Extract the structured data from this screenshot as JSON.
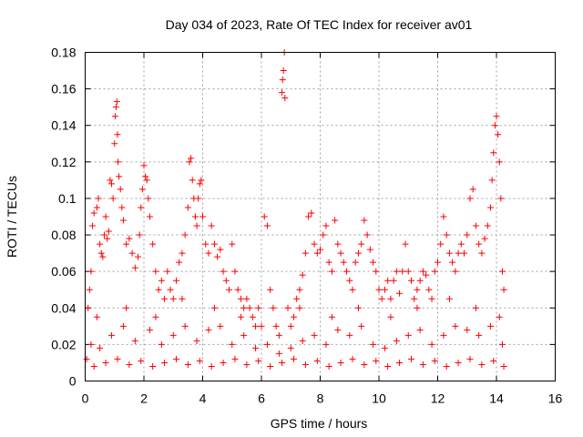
{
  "chart_data": {
    "type": "scatter",
    "title": "Day 034 of 2023, Rate Of TEC Index for receiver av01",
    "xlabel": "GPS time / hours",
    "ylabel": "ROTI / TECUs",
    "xlim": [
      0,
      16
    ],
    "ylim": [
      0,
      0.18
    ],
    "x_ticks": [
      "0",
      "2",
      "4",
      "6",
      "8",
      "10",
      "12",
      "14",
      "16"
    ],
    "y_ticks": [
      "0",
      "0.02",
      "0.04",
      "0.06",
      "0.08",
      "0.1",
      "0.12",
      "0.14",
      "0.16",
      "0.18"
    ],
    "grid": true,
    "marker": "+",
    "color": "#ff0000",
    "series": [
      {
        "name": "ROTI",
        "points": [
          [
            0.05,
            0.012
          ],
          [
            0.1,
            0.04
          ],
          [
            0.15,
            0.05
          ],
          [
            0.2,
            0.06
          ],
          [
            0.25,
            0.085
          ],
          [
            0.3,
            0.092
          ],
          [
            0.4,
            0.095
          ],
          [
            0.45,
            0.1
          ],
          [
            0.5,
            0.075
          ],
          [
            0.55,
            0.07
          ],
          [
            0.6,
            0.068
          ],
          [
            0.65,
            0.08
          ],
          [
            0.7,
            0.09
          ],
          [
            0.75,
            0.078
          ],
          [
            0.8,
            0.082
          ],
          [
            0.85,
            0.11
          ],
          [
            0.9,
            0.108
          ],
          [
            0.95,
            0.1
          ],
          [
            1.0,
            0.13
          ],
          [
            1.02,
            0.145
          ],
          [
            1.05,
            0.15
          ],
          [
            1.08,
            0.153
          ],
          [
            1.1,
            0.135
          ],
          [
            1.12,
            0.12
          ],
          [
            1.15,
            0.112
          ],
          [
            1.2,
            0.105
          ],
          [
            1.25,
            0.095
          ],
          [
            1.3,
            0.088
          ],
          [
            1.4,
            0.075
          ],
          [
            1.5,
            0.078
          ],
          [
            1.6,
            0.07
          ],
          [
            1.7,
            0.062
          ],
          [
            1.8,
            0.068
          ],
          [
            1.85,
            0.08
          ],
          [
            1.9,
            0.095
          ],
          [
            1.95,
            0.105
          ],
          [
            2.0,
            0.118
          ],
          [
            2.05,
            0.112
          ],
          [
            2.1,
            0.11
          ],
          [
            2.15,
            0.1
          ],
          [
            2.2,
            0.09
          ],
          [
            2.3,
            0.075
          ],
          [
            2.4,
            0.06
          ],
          [
            2.5,
            0.05
          ],
          [
            2.6,
            0.055
          ],
          [
            2.7,
            0.045
          ],
          [
            2.8,
            0.06
          ],
          [
            2.9,
            0.05
          ],
          [
            3.0,
            0.045
          ],
          [
            3.1,
            0.055
          ],
          [
            3.2,
            0.065
          ],
          [
            3.3,
            0.07
          ],
          [
            3.4,
            0.08
          ],
          [
            3.5,
            0.095
          ],
          [
            3.55,
            0.12
          ],
          [
            3.6,
            0.122
          ],
          [
            3.65,
            0.11
          ],
          [
            3.7,
            0.1
          ],
          [
            3.75,
            0.09
          ],
          [
            3.8,
            0.085
          ],
          [
            3.85,
            0.1
          ],
          [
            3.9,
            0.108
          ],
          [
            3.95,
            0.11
          ],
          [
            4.0,
            0.09
          ],
          [
            4.1,
            0.075
          ],
          [
            4.2,
            0.07
          ],
          [
            4.3,
            0.085
          ],
          [
            4.4,
            0.075
          ],
          [
            4.5,
            0.068
          ],
          [
            4.6,
            0.072
          ],
          [
            4.7,
            0.06
          ],
          [
            4.8,
            0.055
          ],
          [
            4.9,
            0.05
          ],
          [
            5.0,
            0.075
          ],
          [
            5.1,
            0.06
          ],
          [
            5.2,
            0.05
          ],
          [
            5.3,
            0.045
          ],
          [
            5.4,
            0.04
          ],
          [
            5.5,
            0.045
          ],
          [
            5.6,
            0.04
          ],
          [
            5.7,
            0.035
          ],
          [
            5.8,
            0.03
          ],
          [
            5.9,
            0.04
          ],
          [
            6.0,
            0.03
          ],
          [
            6.1,
            0.09
          ],
          [
            6.2,
            0.085
          ],
          [
            6.3,
            0.05
          ],
          [
            6.4,
            0.04
          ],
          [
            6.5,
            0.03
          ],
          [
            6.6,
            0.025
          ],
          [
            6.7,
            0.158
          ],
          [
            6.72,
            0.165
          ],
          [
            6.75,
            0.17
          ],
          [
            6.78,
            0.18
          ],
          [
            6.8,
            0.155
          ],
          [
            6.9,
            0.04
          ],
          [
            7.0,
            0.03
          ],
          [
            7.1,
            0.035
          ],
          [
            7.2,
            0.045
          ],
          [
            7.3,
            0.05
          ],
          [
            7.4,
            0.058
          ],
          [
            7.5,
            0.07
          ],
          [
            7.6,
            0.09
          ],
          [
            7.7,
            0.092
          ],
          [
            7.8,
            0.075
          ],
          [
            7.9,
            0.07
          ],
          [
            8.0,
            0.072
          ],
          [
            8.1,
            0.08
          ],
          [
            8.2,
            0.085
          ],
          [
            8.3,
            0.065
          ],
          [
            8.4,
            0.06
          ],
          [
            8.5,
            0.088
          ],
          [
            8.6,
            0.075
          ],
          [
            8.7,
            0.07
          ],
          [
            8.8,
            0.065
          ],
          [
            8.9,
            0.06
          ],
          [
            9.0,
            0.055
          ],
          [
            9.1,
            0.05
          ],
          [
            9.2,
            0.065
          ],
          [
            9.3,
            0.07
          ],
          [
            9.4,
            0.075
          ],
          [
            9.5,
            0.088
          ],
          [
            9.6,
            0.08
          ],
          [
            9.7,
            0.072
          ],
          [
            9.8,
            0.065
          ],
          [
            9.9,
            0.06
          ],
          [
            10.0,
            0.05
          ],
          [
            10.1,
            0.045
          ],
          [
            10.2,
            0.05
          ],
          [
            10.3,
            0.055
          ],
          [
            10.4,
            0.045
          ],
          [
            10.5,
            0.055
          ],
          [
            10.6,
            0.06
          ],
          [
            10.7,
            0.048
          ],
          [
            10.8,
            0.06
          ],
          [
            10.9,
            0.075
          ],
          [
            11.0,
            0.06
          ],
          [
            11.1,
            0.055
          ],
          [
            11.2,
            0.045
          ],
          [
            11.3,
            0.05
          ],
          [
            11.4,
            0.055
          ],
          [
            11.5,
            0.06
          ],
          [
            11.6,
            0.058
          ],
          [
            11.7,
            0.05
          ],
          [
            11.8,
            0.045
          ],
          [
            11.9,
            0.06
          ],
          [
            12.0,
            0.065
          ],
          [
            12.1,
            0.075
          ],
          [
            12.2,
            0.09
          ],
          [
            12.3,
            0.08
          ],
          [
            12.4,
            0.07
          ],
          [
            12.5,
            0.065
          ],
          [
            12.6,
            0.06
          ],
          [
            12.7,
            0.07
          ],
          [
            12.8,
            0.075
          ],
          [
            12.9,
            0.07
          ],
          [
            13.0,
            0.08
          ],
          [
            13.1,
            0.1
          ],
          [
            13.2,
            0.105
          ],
          [
            13.3,
            0.085
          ],
          [
            13.4,
            0.075
          ],
          [
            13.5,
            0.07
          ],
          [
            13.6,
            0.078
          ],
          [
            13.7,
            0.085
          ],
          [
            13.8,
            0.095
          ],
          [
            13.85,
            0.11
          ],
          [
            13.9,
            0.125
          ],
          [
            13.95,
            0.14
          ],
          [
            14.0,
            0.145
          ],
          [
            14.05,
            0.135
          ],
          [
            14.1,
            0.12
          ],
          [
            14.15,
            0.1
          ],
          [
            14.2,
            0.06
          ],
          [
            14.25,
            0.05
          ],
          [
            0.2,
            0.02
          ],
          [
            0.5,
            0.018
          ],
          [
            0.9,
            0.025
          ],
          [
            1.3,
            0.03
          ],
          [
            1.7,
            0.022
          ],
          [
            2.2,
            0.028
          ],
          [
            2.6,
            0.02
          ],
          [
            3.0,
            0.025
          ],
          [
            3.4,
            0.03
          ],
          [
            3.8,
            0.022
          ],
          [
            4.2,
            0.028
          ],
          [
            4.6,
            0.03
          ],
          [
            5.0,
            0.02
          ],
          [
            5.4,
            0.025
          ],
          [
            5.8,
            0.018
          ],
          [
            6.2,
            0.02
          ],
          [
            6.6,
            0.015
          ],
          [
            7.0,
            0.018
          ],
          [
            7.4,
            0.022
          ],
          [
            7.8,
            0.025
          ],
          [
            8.2,
            0.02
          ],
          [
            8.6,
            0.028
          ],
          [
            9.0,
            0.025
          ],
          [
            9.4,
            0.03
          ],
          [
            9.8,
            0.02
          ],
          [
            10.2,
            0.018
          ],
          [
            10.6,
            0.022
          ],
          [
            11.0,
            0.025
          ],
          [
            11.4,
            0.028
          ],
          [
            11.8,
            0.02
          ],
          [
            12.2,
            0.025
          ],
          [
            12.6,
            0.03
          ],
          [
            13.0,
            0.028
          ],
          [
            13.4,
            0.025
          ],
          [
            13.8,
            0.03
          ],
          [
            14.2,
            0.02
          ],
          [
            0.3,
            0.008
          ],
          [
            0.7,
            0.01
          ],
          [
            1.1,
            0.012
          ],
          [
            1.5,
            0.009
          ],
          [
            1.9,
            0.011
          ],
          [
            2.3,
            0.008
          ],
          [
            2.7,
            0.01
          ],
          [
            3.1,
            0.012
          ],
          [
            3.5,
            0.009
          ],
          [
            3.9,
            0.011
          ],
          [
            4.3,
            0.008
          ],
          [
            4.7,
            0.01
          ],
          [
            5.1,
            0.012
          ],
          [
            5.5,
            0.009
          ],
          [
            5.9,
            0.011
          ],
          [
            6.3,
            0.008
          ],
          [
            6.7,
            0.01
          ],
          [
            7.1,
            0.012
          ],
          [
            7.5,
            0.009
          ],
          [
            7.9,
            0.011
          ],
          [
            8.3,
            0.008
          ],
          [
            8.7,
            0.01
          ],
          [
            9.1,
            0.012
          ],
          [
            9.5,
            0.009
          ],
          [
            9.9,
            0.011
          ],
          [
            10.3,
            0.008
          ],
          [
            10.7,
            0.01
          ],
          [
            11.1,
            0.012
          ],
          [
            11.5,
            0.009
          ],
          [
            11.9,
            0.011
          ],
          [
            12.3,
            0.008
          ],
          [
            12.7,
            0.01
          ],
          [
            13.1,
            0.012
          ],
          [
            13.5,
            0.009
          ],
          [
            13.9,
            0.011
          ],
          [
            14.25,
            0.008
          ],
          [
            0.4,
            0.035
          ],
          [
            1.4,
            0.04
          ],
          [
            2.4,
            0.035
          ],
          [
            3.3,
            0.045
          ],
          [
            4.4,
            0.04
          ],
          [
            5.3,
            0.035
          ],
          [
            7.3,
            0.04
          ],
          [
            8.4,
            0.035
          ],
          [
            9.3,
            0.04
          ],
          [
            10.4,
            0.035
          ],
          [
            11.3,
            0.04
          ],
          [
            12.4,
            0.045
          ],
          [
            13.3,
            0.04
          ],
          [
            14.1,
            0.035
          ]
        ]
      }
    ]
  }
}
